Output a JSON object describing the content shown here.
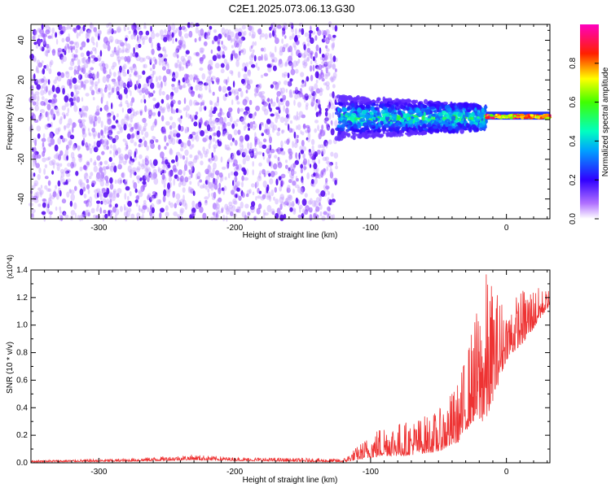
{
  "figure_title": "C2E1.2025.073.06.13.G30",
  "chart_data": [
    {
      "type": "heatmap",
      "xlabel": "Height of straight line (km)",
      "ylabel": "Frequency (Hz)",
      "xlim": [
        -350,
        32
      ],
      "ylim": [
        -50,
        48
      ],
      "x_ticks": [
        -300,
        -200,
        -100,
        0
      ],
      "y_ticks": [
        -40,
        -20,
        0,
        20,
        40
      ],
      "colorbar": {
        "label": "Normalized spectral amplitude",
        "range": [
          0,
          1
        ],
        "ticks": [
          "0.0",
          "0.2",
          "0.4",
          "0.6",
          "0.8"
        ],
        "colors": [
          "#ffffff",
          "#7f00ff",
          "#0000ff",
          "#00ffff",
          "#00ff00",
          "#ffff00",
          "#ff0000",
          "#ff00ff"
        ]
      },
      "description_regions": [
        {
          "x_range": [
            -350,
            -125
          ],
          "freq_range": [
            -50,
            48
          ],
          "amplitude": [
            0.0,
            0.15
          ]
        },
        {
          "x_range": [
            -125,
            -15
          ],
          "freq_range": [
            -12,
            10
          ],
          "amplitude": [
            0.1,
            0.5
          ]
        },
        {
          "x_range": [
            -15,
            32
          ],
          "freq_range": [
            0,
            4
          ],
          "amplitude": [
            0.6,
            1.0
          ]
        }
      ]
    },
    {
      "type": "line",
      "xlabel": "Height of straight line (km)",
      "ylabel": "SNR (10 * v/v)",
      "y_multiplier": "(x10^4)",
      "xlim": [
        -350,
        32
      ],
      "ylim": [
        0,
        1.4
      ],
      "x_ticks": [
        -300,
        -200,
        -100,
        0
      ],
      "y_ticks": [
        "0.0",
        "0.2",
        "0.4",
        "0.6",
        "0.8",
        "1.0",
        "1.2",
        "1.4"
      ],
      "color": "#ee3333",
      "envelope_points": [
        {
          "x": -350,
          "base": 0.005,
          "peak": 0.02
        },
        {
          "x": -280,
          "base": 0.01,
          "peak": 0.03
        },
        {
          "x": -230,
          "base": 0.02,
          "peak": 0.06
        },
        {
          "x": -200,
          "base": 0.015,
          "peak": 0.04
        },
        {
          "x": -120,
          "base": 0.005,
          "peak": 0.03
        },
        {
          "x": -110,
          "base": 0.02,
          "peak": 0.12
        },
        {
          "x": -90,
          "base": 0.05,
          "peak": 0.3
        },
        {
          "x": -75,
          "base": 0.05,
          "peak": 0.3
        },
        {
          "x": -50,
          "base": 0.08,
          "peak": 0.38
        },
        {
          "x": -35,
          "base": 0.15,
          "peak": 0.6
        },
        {
          "x": -25,
          "base": 0.3,
          "peak": 1.0
        },
        {
          "x": -15,
          "base": 0.3,
          "peak": 1.4
        },
        {
          "x": 0,
          "base": 0.75,
          "peak": 1.15
        },
        {
          "x": 15,
          "base": 0.9,
          "peak": 1.3
        },
        {
          "x": 32,
          "base": 1.15,
          "peak": 1.25
        }
      ]
    }
  ]
}
